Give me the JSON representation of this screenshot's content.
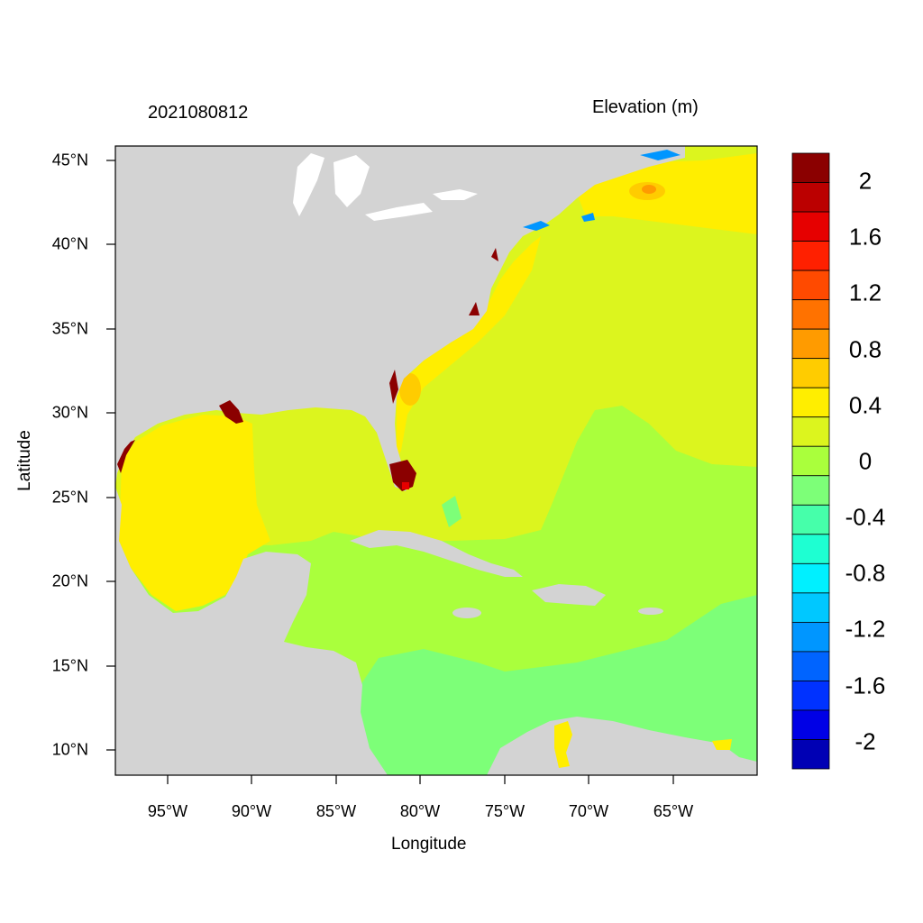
{
  "header": {
    "timestamp": "2021080812",
    "title": "Elevation (m)"
  },
  "axes": {
    "xlabel": "Longitude",
    "ylabel": "Latitude",
    "x_ticks": [
      "95°W",
      "90°W",
      "85°W",
      "80°W",
      "75°W",
      "70°W",
      "65°W"
    ],
    "y_ticks": [
      "45°N",
      "40°N",
      "35°N",
      "30°N",
      "25°N",
      "20°N",
      "15°N",
      "10°N"
    ]
  },
  "colorbar": {
    "labels": [
      "2",
      "1.6",
      "1.2",
      "0.8",
      "0.4",
      "0",
      "-0.4",
      "-0.8",
      "-1.2",
      "-1.6",
      "-2"
    ],
    "colors": [
      "#8b0000",
      "#bb0000",
      "#e60000",
      "#ff2000",
      "#ff4a00",
      "#ff7200",
      "#ff9b00",
      "#ffcc00",
      "#ffee00",
      "#dcf51e",
      "#aaff3c",
      "#7dff78",
      "#46ffaa",
      "#1effd2",
      "#00f0ff",
      "#00c8ff",
      "#0096ff",
      "#0064ff",
      "#0032ff",
      "#0000e6",
      "#0000b4"
    ]
  },
  "map_colors": {
    "land": "#d3d3d3",
    "water": "#ffffff",
    "yellow": "#ffee00",
    "yellow_green": "#dcf51e",
    "green": "#aaff3c",
    "light_green": "#7dff78",
    "orange": "#ffcc00",
    "dark_red": "#8b0000"
  }
}
